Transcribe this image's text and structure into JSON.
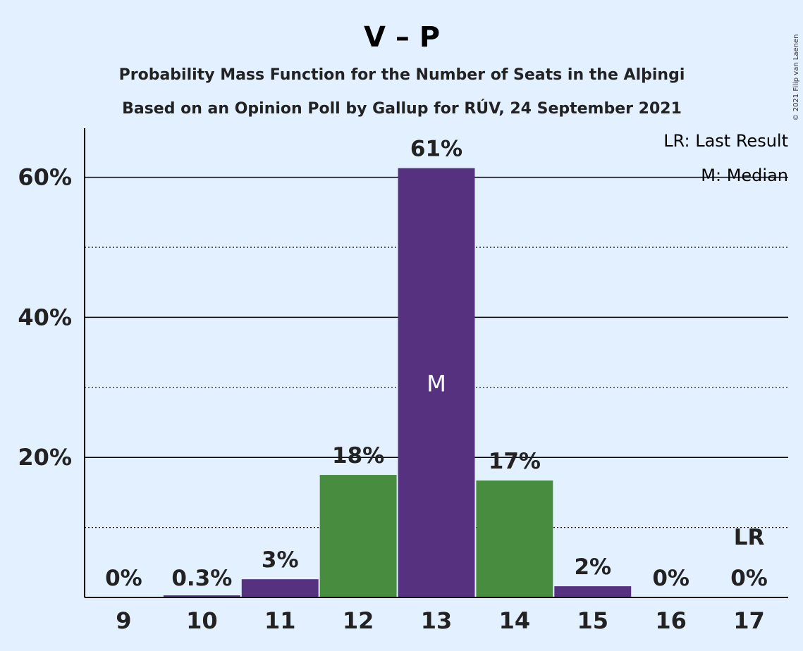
{
  "chart_data": {
    "type": "bar",
    "title": "V – P",
    "subtitle_line1": "Probability Mass Function for the Number of Seats in the Alþingi",
    "subtitle_line2": "Based on an Opinion Poll by Gallup for RÚV, 24 September 2021",
    "copyright": "© 2021 Filip van Laenen",
    "categories": [
      "9",
      "10",
      "11",
      "12",
      "13",
      "14",
      "15",
      "16",
      "17"
    ],
    "values": [
      0,
      0.3,
      2.6,
      17.5,
      61.3,
      16.7,
      1.6,
      0,
      0
    ],
    "data_labels": [
      "0%",
      "0.3%",
      "3%",
      "18%",
      "61%",
      "17%",
      "2%",
      "0%",
      "0%"
    ],
    "bar_colors": [
      "#553180",
      "#553180",
      "#553180",
      "#478c3f",
      "#553180",
      "#478c3f",
      "#553180",
      "#553180",
      "#553180"
    ],
    "ylim": [
      0,
      67
    ],
    "yticks": [
      20,
      40,
      60
    ],
    "ytick_labels": [
      "20%",
      "40%",
      "60%"
    ],
    "minor_gridlines": [
      10,
      30,
      50
    ],
    "median_index": 4,
    "median_marker": "M",
    "last_result_index": 8,
    "last_result_marker": "LR",
    "legend": [
      "LR: Last Result",
      "M: Median"
    ],
    "legend_placement": "top-right",
    "grid": true
  },
  "colors": {
    "background": "#e3f0ff",
    "purple": "#553180",
    "green": "#478c3f"
  }
}
